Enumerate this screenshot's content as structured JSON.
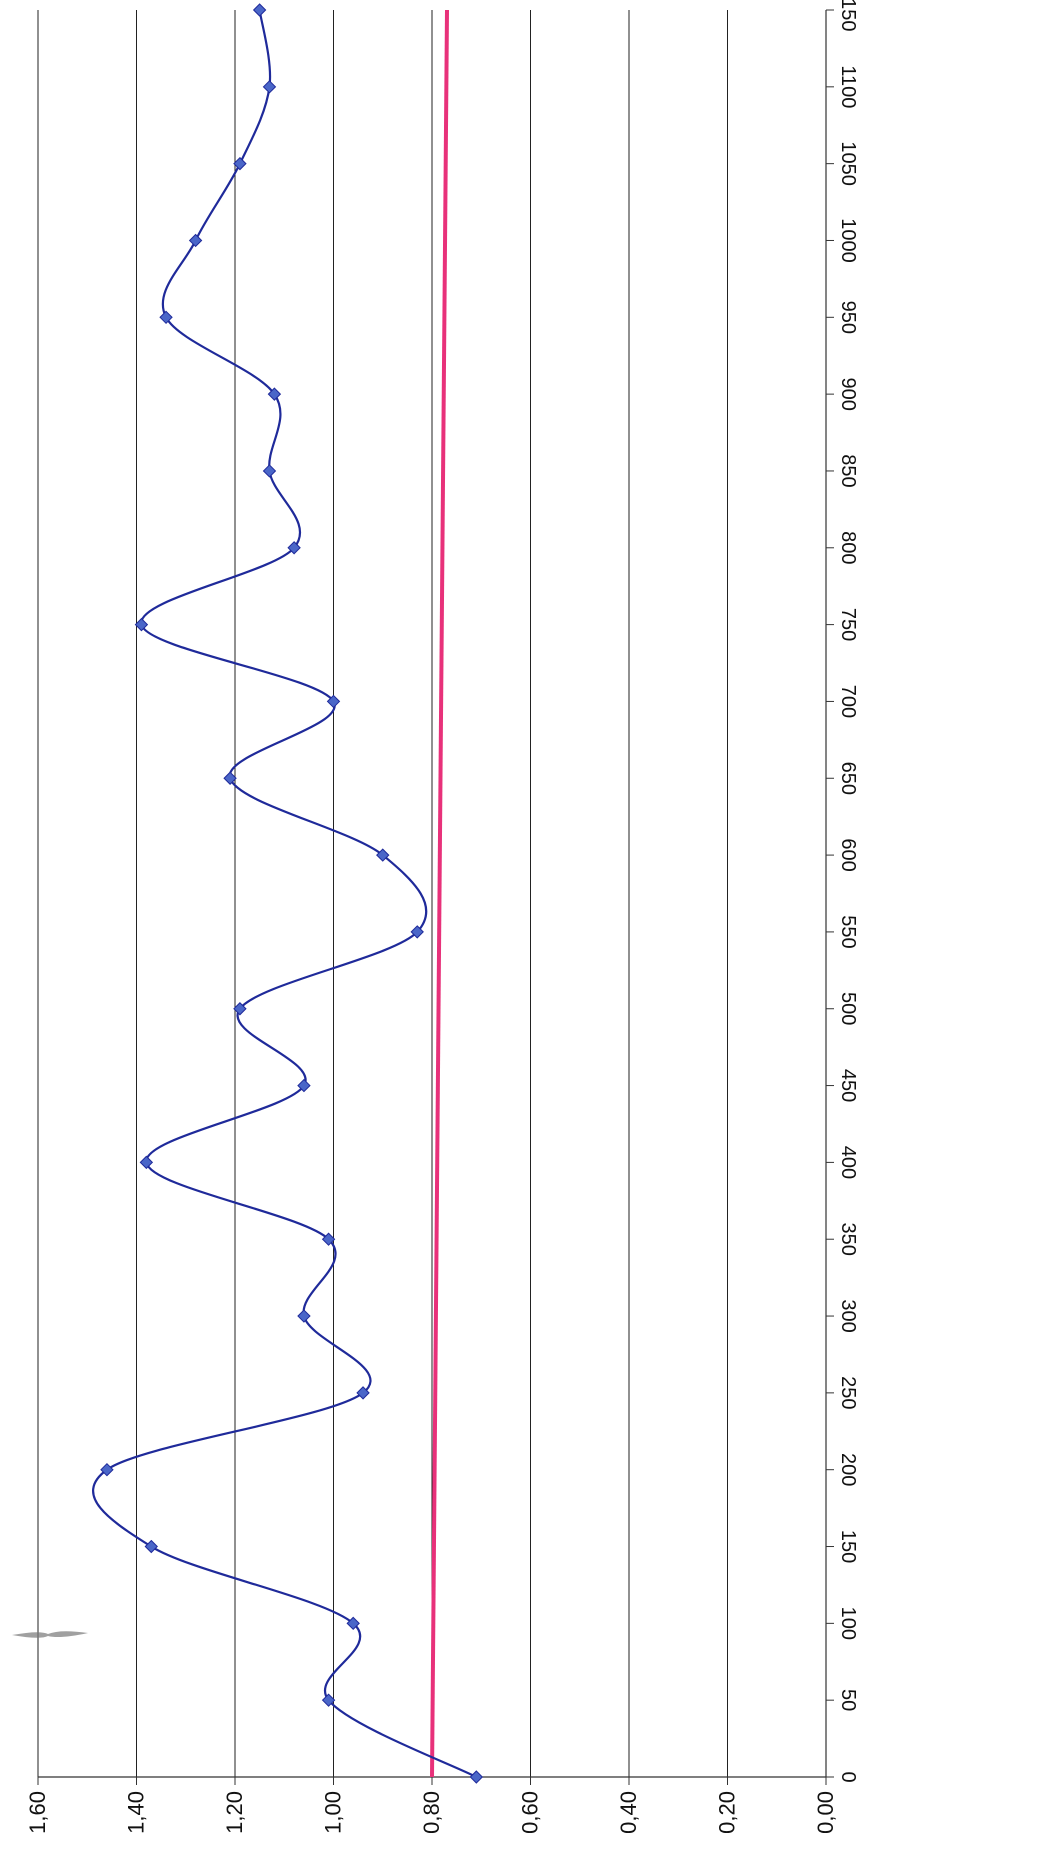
{
  "chart_data": {
    "type": "line",
    "orientation": "rotated-90",
    "grid": true,
    "xlim": [
      0,
      1150
    ],
    "ylim": [
      0,
      1.6
    ],
    "x_ticks": [
      {
        "value": 0,
        "label": "0"
      },
      {
        "value": 50,
        "label": "50"
      },
      {
        "value": 100,
        "label": "100"
      },
      {
        "value": 150,
        "label": "150"
      },
      {
        "value": 200,
        "label": "200"
      },
      {
        "value": 250,
        "label": "250"
      },
      {
        "value": 300,
        "label": "300"
      },
      {
        "value": 350,
        "label": "350"
      },
      {
        "value": 400,
        "label": "400"
      },
      {
        "value": 450,
        "label": "450"
      },
      {
        "value": 500,
        "label": "500"
      },
      {
        "value": 550,
        "label": "550"
      },
      {
        "value": 600,
        "label": "600"
      },
      {
        "value": 650,
        "label": "650"
      },
      {
        "value": 700,
        "label": "700"
      },
      {
        "value": 750,
        "label": "750"
      },
      {
        "value": 800,
        "label": "800"
      },
      {
        "value": 850,
        "label": "850"
      },
      {
        "value": 900,
        "label": "900"
      },
      {
        "value": 950,
        "label": "950"
      },
      {
        "value": 1000,
        "label": "1000"
      },
      {
        "value": 1050,
        "label": "1050"
      },
      {
        "value": 1100,
        "label": "1100"
      },
      {
        "value": 1150,
        "label": "1150"
      }
    ],
    "y_ticks": [
      {
        "value": 0,
        "label": "0,00"
      },
      {
        "value": 0.2,
        "label": "0,20"
      },
      {
        "value": 0.4,
        "label": "0,40"
      },
      {
        "value": 0.6,
        "label": "0,60"
      },
      {
        "value": 0.8,
        "label": "0,80"
      },
      {
        "value": 1.0,
        "label": "1,00"
      },
      {
        "value": 1.2,
        "label": "1,20"
      },
      {
        "value": 1.4,
        "label": "1,40"
      },
      {
        "value": 1.6,
        "label": "1,60"
      }
    ],
    "series": [
      {
        "color": "#1f2a9a",
        "marker_color": "#4a66c8",
        "x": [
          0,
          50,
          100,
          150,
          200,
          250,
          300,
          350,
          400,
          450,
          500,
          550,
          600,
          650,
          700,
          750,
          800,
          850,
          900,
          950,
          1000,
          1050,
          1100,
          1150
        ],
        "y": [
          0.71,
          1.01,
          0.96,
          1.37,
          1.46,
          0.94,
          1.06,
          1.01,
          1.38,
          1.06,
          1.19,
          0.83,
          0.9,
          1.21,
          1.0,
          1.39,
          1.08,
          1.13,
          1.12,
          1.34,
          1.28,
          1.19,
          1.13,
          1.15
        ]
      }
    ],
    "reference_line": {
      "y": 0.8,
      "color": "#e8317a"
    }
  }
}
